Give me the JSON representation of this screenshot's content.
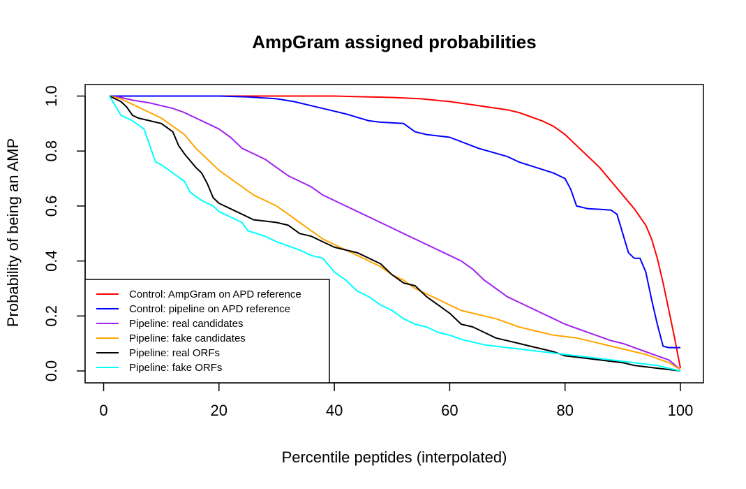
{
  "chart_data": {
    "type": "line",
    "title": "AmpGram assigned probabilities",
    "xlabel": "Percentile peptides (interpolated)",
    "ylabel": "Probability of being an AMP",
    "xlim": [
      0,
      100
    ],
    "ylim": [
      0,
      1
    ],
    "x_ticks": [
      "0",
      "20",
      "40",
      "60",
      "80",
      "100"
    ],
    "y_ticks": [
      "0.0",
      "0.2",
      "0.4",
      "0.6",
      "0.8",
      "1.0"
    ],
    "grid": false,
    "legend_position": "bottom-left",
    "series": [
      {
        "name": "Control: AmpGram on APD reference",
        "color": "#ff0000",
        "x": [
          1,
          10,
          20,
          30,
          40,
          50,
          55,
          60,
          65,
          70,
          72,
          74,
          76,
          78,
          80,
          82,
          84,
          86,
          88,
          90,
          92,
          94,
          95,
          96,
          97,
          98,
          99,
          100
        ],
        "y": [
          1.0,
          1.0,
          1.0,
          1.0,
          1.0,
          0.995,
          0.99,
          0.98,
          0.965,
          0.95,
          0.94,
          0.925,
          0.91,
          0.89,
          0.86,
          0.82,
          0.78,
          0.74,
          0.69,
          0.64,
          0.59,
          0.53,
          0.48,
          0.41,
          0.32,
          0.22,
          0.12,
          0.01
        ]
      },
      {
        "name": "Control: pipeline on APD reference",
        "color": "#0000ff",
        "x": [
          1,
          20,
          25,
          30,
          33,
          36,
          39,
          42,
          46,
          48,
          52,
          54,
          56,
          60,
          65,
          70,
          72,
          75,
          78,
          80,
          81,
          82,
          84,
          86,
          88,
          89,
          90,
          91,
          92,
          93,
          94,
          95,
          96,
          97,
          98,
          99,
          100
        ],
        "y": [
          1.0,
          1.0,
          0.997,
          0.99,
          0.98,
          0.965,
          0.95,
          0.935,
          0.91,
          0.905,
          0.9,
          0.87,
          0.86,
          0.85,
          0.81,
          0.78,
          0.76,
          0.74,
          0.72,
          0.7,
          0.66,
          0.6,
          0.59,
          0.588,
          0.585,
          0.57,
          0.5,
          0.43,
          0.41,
          0.41,
          0.36,
          0.26,
          0.17,
          0.09,
          0.085,
          0.085,
          0.085
        ]
      },
      {
        "name": "Pipeline: real candidates",
        "color": "#a020f0",
        "x": [
          1,
          3,
          5,
          8,
          10,
          12,
          14,
          16,
          18,
          20,
          22,
          24,
          26,
          28,
          30,
          32,
          34,
          36,
          38,
          40,
          42,
          44,
          46,
          48,
          50,
          52,
          54,
          56,
          58,
          60,
          62,
          64,
          66,
          68,
          70,
          72,
          74,
          76,
          78,
          80,
          82,
          84,
          86,
          88,
          90,
          92,
          94,
          96,
          98,
          100
        ],
        "y": [
          1.0,
          0.995,
          0.985,
          0.975,
          0.965,
          0.955,
          0.94,
          0.92,
          0.9,
          0.88,
          0.85,
          0.81,
          0.79,
          0.77,
          0.74,
          0.71,
          0.69,
          0.67,
          0.64,
          0.62,
          0.6,
          0.58,
          0.56,
          0.54,
          0.52,
          0.5,
          0.48,
          0.46,
          0.44,
          0.42,
          0.4,
          0.37,
          0.33,
          0.3,
          0.27,
          0.25,
          0.23,
          0.21,
          0.19,
          0.17,
          0.155,
          0.14,
          0.125,
          0.11,
          0.1,
          0.085,
          0.07,
          0.055,
          0.04,
          0.005
        ]
      },
      {
        "name": "Pipeline: fake candidates",
        "color": "#ffa500",
        "x": [
          1,
          3,
          5,
          8,
          10,
          12,
          14,
          16,
          18,
          20,
          22,
          24,
          26,
          28,
          30,
          32,
          34,
          36,
          38,
          40,
          42,
          44,
          46,
          48,
          50,
          52,
          54,
          56,
          58,
          60,
          62,
          64,
          66,
          68,
          70,
          72,
          74,
          76,
          78,
          80,
          82,
          84,
          86,
          88,
          90,
          92,
          94,
          96,
          98,
          100
        ],
        "y": [
          1.0,
          0.99,
          0.97,
          0.94,
          0.92,
          0.89,
          0.86,
          0.81,
          0.77,
          0.73,
          0.7,
          0.67,
          0.64,
          0.62,
          0.6,
          0.57,
          0.54,
          0.51,
          0.48,
          0.46,
          0.44,
          0.42,
          0.4,
          0.38,
          0.35,
          0.33,
          0.3,
          0.28,
          0.26,
          0.24,
          0.22,
          0.21,
          0.2,
          0.19,
          0.175,
          0.16,
          0.15,
          0.14,
          0.13,
          0.125,
          0.12,
          0.11,
          0.1,
          0.09,
          0.08,
          0.07,
          0.06,
          0.045,
          0.03,
          0.005
        ]
      },
      {
        "name": "Pipeline: real ORFs",
        "color": "#000000",
        "x": [
          1,
          3,
          4,
          5,
          6,
          8,
          10,
          12,
          13,
          14,
          16,
          17,
          18,
          19,
          20,
          22,
          24,
          26,
          28,
          30,
          32,
          34,
          36,
          38,
          40,
          42,
          44,
          46,
          48,
          50,
          52,
          54,
          56,
          58,
          60,
          62,
          64,
          66,
          68,
          70,
          72,
          74,
          76,
          78,
          80,
          82,
          84,
          86,
          88,
          90,
          92,
          94,
          96,
          98,
          100
        ],
        "y": [
          1.0,
          0.98,
          0.96,
          0.93,
          0.92,
          0.91,
          0.9,
          0.87,
          0.82,
          0.79,
          0.74,
          0.72,
          0.68,
          0.63,
          0.61,
          0.59,
          0.57,
          0.55,
          0.545,
          0.54,
          0.53,
          0.5,
          0.49,
          0.47,
          0.45,
          0.44,
          0.43,
          0.41,
          0.39,
          0.35,
          0.32,
          0.31,
          0.27,
          0.24,
          0.21,
          0.17,
          0.16,
          0.14,
          0.12,
          0.11,
          0.1,
          0.09,
          0.08,
          0.07,
          0.055,
          0.05,
          0.045,
          0.04,
          0.035,
          0.03,
          0.02,
          0.015,
          0.01,
          0.005,
          0.0
        ]
      },
      {
        "name": "Pipeline: fake ORFs",
        "color": "#00ffff",
        "x": [
          1,
          3,
          5,
          7,
          8,
          9,
          10,
          12,
          14,
          15,
          17,
          19,
          20,
          22,
          24,
          25,
          28,
          30,
          32,
          34,
          36,
          38,
          40,
          42,
          44,
          46,
          48,
          50,
          52,
          54,
          56,
          58,
          60,
          62,
          64,
          66,
          68,
          70,
          72,
          74,
          76,
          78,
          80,
          82,
          84,
          86,
          88,
          90,
          92,
          94,
          96,
          98,
          100
        ],
        "y": [
          1.0,
          0.93,
          0.91,
          0.88,
          0.82,
          0.76,
          0.75,
          0.72,
          0.69,
          0.65,
          0.62,
          0.6,
          0.58,
          0.56,
          0.54,
          0.51,
          0.49,
          0.47,
          0.455,
          0.44,
          0.42,
          0.41,
          0.36,
          0.33,
          0.29,
          0.27,
          0.24,
          0.22,
          0.19,
          0.17,
          0.16,
          0.14,
          0.13,
          0.115,
          0.105,
          0.095,
          0.09,
          0.085,
          0.08,
          0.075,
          0.07,
          0.065,
          0.06,
          0.055,
          0.05,
          0.045,
          0.04,
          0.035,
          0.03,
          0.025,
          0.02,
          0.01,
          0.0
        ]
      }
    ]
  }
}
